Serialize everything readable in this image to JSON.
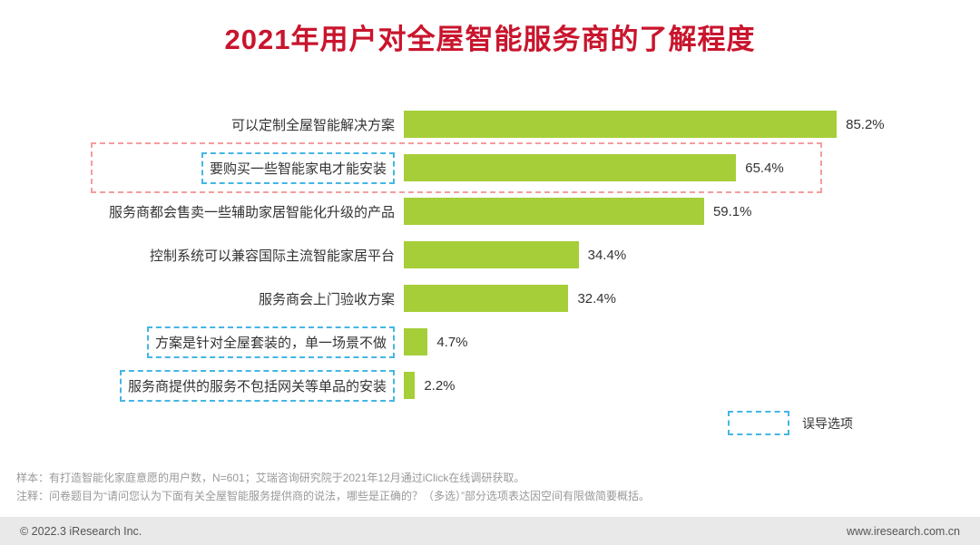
{
  "title": "2021年用户对全屋智能服务商的了解程度",
  "colors": {
    "title": "#c9152d",
    "bar": "#a6ce39",
    "misleading_box": "#45b6e5",
    "highlight_box": "#f49e9e",
    "footer_bg": "#e9e9e9"
  },
  "chart_data": {
    "type": "bar",
    "orientation": "horizontal",
    "title": "2021年用户对全屋智能服务商的了解程度",
    "categories": [
      "可以定制全屋智能解决方案",
      "要购买一些智能家电才能安装",
      "服务商都会售卖一些辅助家居智能化升级的产品",
      "控制系统可以兼容国际主流智能家居平台",
      "服务商会上门验收方案",
      "方案是针对全屋套装的，单一场景不做",
      "服务商提供的服务不包括网关等单品的安装"
    ],
    "values": [
      85.2,
      65.4,
      59.1,
      34.4,
      32.4,
      4.7,
      2.2
    ],
    "value_labels": [
      "85.2%",
      "65.4%",
      "59.1%",
      "34.4%",
      "32.4%",
      "4.7%",
      "2.2%"
    ],
    "misleading_indices": [
      1,
      5,
      6
    ],
    "highlighted_row_index": 1,
    "xlim": [
      0,
      100
    ],
    "grid": false,
    "legend_position": "bottom-right"
  },
  "legend": {
    "label": "误导选项"
  },
  "notes": {
    "sample": "样本：有打造智能化家庭意愿的用户数，N=601；艾瑞咨询研究院于2021年12月通过iClick在线调研获取。",
    "annotation": "注释：问卷题目为“请问您认为下面有关全屋智能服务提供商的说法，哪些是正确的？（多选）”部分选项表达因空间有限做简要概括。"
  },
  "footer": {
    "copyright": "© 2022.3 iResearch Inc.",
    "website": "www.iresearch.com.cn"
  }
}
